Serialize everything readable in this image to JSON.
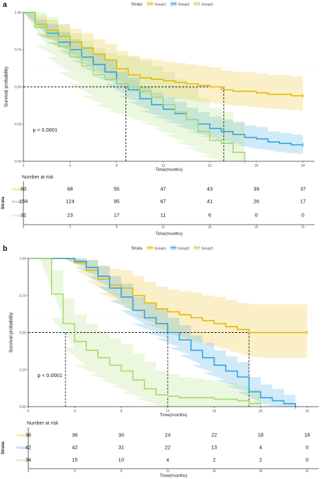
{
  "colors": {
    "group1": "#E7B800",
    "group2": "#2E9FDF",
    "group3": "#A6D96A"
  },
  "chart_data": [
    {
      "type": "line",
      "panel_label": "a",
      "legend": {
        "title": "Strata",
        "entries": [
          "Group1",
          "Group2",
          "Group3"
        ],
        "placement": "top"
      },
      "xlabel": "Time(months)",
      "ylabel": "Survival probability",
      "xlim": [
        0,
        25
      ],
      "ylim": [
        0,
        1
      ],
      "x_ticks": [
        0,
        4,
        8,
        12,
        16,
        20,
        24
      ],
      "y_ticks": [
        0,
        0.25,
        0.5,
        0.75,
        1
      ],
      "y_tick_labels": [
        "0.00",
        "0.25",
        "0.50",
        "0.75",
        "1.00"
      ],
      "pvalue": "p < 0.0001",
      "median_lines": [
        8.8,
        17.2
      ],
      "series": [
        {
          "name": "Group1",
          "x": [
            0,
            1,
            2,
            3,
            4,
            5,
            6,
            7,
            8,
            9,
            10,
            11,
            12,
            13,
            14,
            15,
            16,
            17,
            18,
            19,
            20,
            21,
            22,
            23,
            24
          ],
          "y": [
            1,
            0.92,
            0.88,
            0.84,
            0.8,
            0.76,
            0.72,
            0.68,
            0.62,
            0.58,
            0.56,
            0.55,
            0.54,
            0.53,
            0.52,
            0.51,
            0.5,
            0.48,
            0.47,
            0.47,
            0.46,
            0.45,
            0.45,
            0.44,
            0.44
          ],
          "lower": [
            1,
            0.86,
            0.8,
            0.75,
            0.7,
            0.66,
            0.62,
            0.57,
            0.52,
            0.47,
            0.45,
            0.44,
            0.43,
            0.42,
            0.41,
            0.4,
            0.39,
            0.38,
            0.37,
            0.37,
            0.36,
            0.35,
            0.35,
            0.34,
            0.34
          ],
          "upper": [
            1,
            0.98,
            0.95,
            0.92,
            0.89,
            0.86,
            0.82,
            0.79,
            0.74,
            0.71,
            0.69,
            0.68,
            0.67,
            0.66,
            0.65,
            0.64,
            0.63,
            0.61,
            0.6,
            0.6,
            0.59,
            0.58,
            0.58,
            0.57,
            0.57
          ]
        },
        {
          "name": "Group2",
          "x": [
            0,
            1,
            2,
            3,
            4,
            5,
            6,
            7,
            8,
            9,
            10,
            11,
            12,
            13,
            14,
            15,
            16,
            17,
            18,
            19,
            20,
            21,
            22,
            23,
            24
          ],
          "y": [
            1,
            0.9,
            0.86,
            0.8,
            0.75,
            0.7,
            0.65,
            0.6,
            0.52,
            0.48,
            0.42,
            0.38,
            0.35,
            0.32,
            0.28,
            0.25,
            0.22,
            0.2,
            0.18,
            0.16,
            0.15,
            0.13,
            0.12,
            0.11,
            0.11
          ],
          "lower": [
            1,
            0.85,
            0.8,
            0.74,
            0.68,
            0.63,
            0.57,
            0.52,
            0.44,
            0.4,
            0.34,
            0.3,
            0.27,
            0.24,
            0.2,
            0.17,
            0.15,
            0.13,
            0.11,
            0.09,
            0.08,
            0.07,
            0.06,
            0.05,
            0.05
          ],
          "upper": [
            1,
            0.95,
            0.92,
            0.87,
            0.82,
            0.77,
            0.72,
            0.68,
            0.6,
            0.56,
            0.5,
            0.46,
            0.43,
            0.4,
            0.36,
            0.33,
            0.3,
            0.28,
            0.26,
            0.24,
            0.23,
            0.2,
            0.19,
            0.18,
            0.18
          ]
        },
        {
          "name": "Group3",
          "x": [
            0,
            1,
            2,
            3,
            4,
            5,
            6,
            7,
            8,
            9,
            10,
            11,
            12,
            13,
            14,
            15,
            16,
            17,
            18,
            19
          ],
          "y": [
            1,
            0.9,
            0.84,
            0.77,
            0.7,
            0.64,
            0.58,
            0.55,
            0.52,
            0.5,
            0.47,
            0.43,
            0.38,
            0.33,
            0.28,
            0.2,
            0.14,
            0.12,
            0.06,
            0
          ],
          "lower": [
            1,
            0.78,
            0.7,
            0.6,
            0.52,
            0.44,
            0.38,
            0.34,
            0.31,
            0.29,
            0.26,
            0.22,
            0.18,
            0.13,
            0.09,
            0.04,
            0.01,
            0,
            0,
            0
          ],
          "upper": [
            1,
            1,
            0.97,
            0.92,
            0.86,
            0.81,
            0.76,
            0.73,
            0.71,
            0.7,
            0.67,
            0.64,
            0.6,
            0.55,
            0.5,
            0.42,
            0.36,
            0.33,
            0.27,
            0.2
          ]
        }
      ],
      "risk_table": {
        "title": "Number at risk",
        "row_title": "Strata",
        "xlabel": "Time(months)",
        "times": [
          0,
          4,
          8,
          12,
          16,
          20,
          24
        ],
        "rows": [
          {
            "name": "Group1",
            "values": [
              83,
              68,
              55,
              47,
              43,
              39,
              37
            ]
          },
          {
            "name": "Group2",
            "values": [
              156,
              124,
              95,
              67,
              41,
              26,
              17
            ]
          },
          {
            "name": "Group3",
            "values": [
              31,
              23,
              17,
              11,
              6,
              0,
              0
            ]
          }
        ]
      }
    },
    {
      "type": "line",
      "panel_label": "b",
      "legend": {
        "title": "Strata",
        "entries": [
          "Group1",
          "Group2",
          "Group3"
        ],
        "placement": "top"
      },
      "xlabel": "Time(months)",
      "ylabel": "Survival probability",
      "xlim": [
        0,
        25
      ],
      "ylim": [
        0,
        1
      ],
      "x_ticks": [
        0,
        4,
        8,
        12,
        16,
        20,
        24
      ],
      "y_ticks": [
        0,
        0.25,
        0.5,
        0.75,
        1
      ],
      "y_tick_labels": [
        "0.00",
        "0.25",
        "0.50",
        "0.75",
        "1.00"
      ],
      "pvalue": "p < 0.0001",
      "median_lines": [
        3.2,
        12.0,
        19.0
      ],
      "series": [
        {
          "name": "Group1",
          "x": [
            0,
            1,
            2,
            3,
            4,
            5,
            6,
            7,
            8,
            9,
            10,
            11,
            12,
            13,
            14,
            15,
            16,
            17,
            18,
            19,
            20,
            21,
            22,
            23,
            24
          ],
          "y": [
            1,
            1,
            1,
            1,
            0.97,
            0.92,
            0.86,
            0.82,
            0.8,
            0.75,
            0.7,
            0.66,
            0.64,
            0.62,
            0.6,
            0.58,
            0.56,
            0.54,
            0.52,
            0.5,
            0.5,
            0.5,
            0.5,
            0.5,
            0.5
          ],
          "lower": [
            1,
            1,
            1,
            1,
            0.92,
            0.85,
            0.77,
            0.71,
            0.68,
            0.62,
            0.56,
            0.51,
            0.49,
            0.46,
            0.44,
            0.42,
            0.4,
            0.38,
            0.35,
            0.33,
            0.33,
            0.33,
            0.33,
            0.33,
            0.33
          ],
          "upper": [
            1,
            1,
            1,
            1,
            1,
            0.99,
            0.95,
            0.93,
            0.92,
            0.88,
            0.84,
            0.81,
            0.79,
            0.78,
            0.77,
            0.75,
            0.74,
            0.72,
            0.7,
            0.69,
            0.69,
            0.69,
            0.69,
            0.69,
            0.69
          ]
        },
        {
          "name": "Group2",
          "x": [
            0,
            1,
            2,
            3,
            4,
            5,
            6,
            7,
            8,
            9,
            10,
            11,
            12,
            13,
            14,
            15,
            16,
            17,
            18,
            19,
            20,
            21,
            22,
            23
          ],
          "y": [
            1,
            1,
            1,
            1,
            0.98,
            0.94,
            0.88,
            0.8,
            0.74,
            0.65,
            0.6,
            0.56,
            0.5,
            0.45,
            0.38,
            0.33,
            0.28,
            0.24,
            0.2,
            0.1,
            0.06,
            0.04,
            0.02,
            0
          ],
          "lower": [
            1,
            1,
            1,
            1,
            0.94,
            0.88,
            0.81,
            0.72,
            0.65,
            0.56,
            0.5,
            0.46,
            0.4,
            0.35,
            0.28,
            0.23,
            0.18,
            0.14,
            0.1,
            0.03,
            0.01,
            0,
            0,
            0
          ],
          "upper": [
            1,
            1,
            1,
            1,
            1,
            0.99,
            0.95,
            0.88,
            0.83,
            0.74,
            0.7,
            0.66,
            0.6,
            0.55,
            0.48,
            0.43,
            0.38,
            0.34,
            0.3,
            0.2,
            0.15,
            0.12,
            0.08,
            0.05
          ]
        },
        {
          "name": "Group3",
          "x": [
            0,
            1,
            2,
            3,
            4,
            5,
            6,
            7,
            8,
            9,
            10,
            11,
            12,
            13,
            14,
            15,
            16,
            17,
            18,
            19,
            20
          ],
          "y": [
            1,
            1,
            0.76,
            0.56,
            0.44,
            0.38,
            0.33,
            0.28,
            0.24,
            0.18,
            0.12,
            0.08,
            0.07,
            0.06,
            0.06,
            0.06,
            0.05,
            0.05,
            0.04,
            0.02,
            0.02
          ],
          "lower": [
            1,
            1,
            0.6,
            0.4,
            0.28,
            0.22,
            0.18,
            0.14,
            0.1,
            0.06,
            0.02,
            0,
            0,
            0,
            0,
            0,
            0,
            0,
            0,
            0,
            0
          ],
          "upper": [
            1,
            1,
            0.92,
            0.73,
            0.62,
            0.56,
            0.51,
            0.46,
            0.42,
            0.36,
            0.3,
            0.24,
            0.22,
            0.2,
            0.19,
            0.18,
            0.17,
            0.16,
            0.14,
            0.12,
            0.12
          ]
        }
      ],
      "risk_table": {
        "title": "Number at risk",
        "row_title": "Strata",
        "xlabel": "Time(months)",
        "times": [
          0,
          4,
          8,
          12,
          16,
          20,
          24
        ],
        "rows": [
          {
            "name": "Group1",
            "values": [
              36,
              36,
              30,
              24,
              22,
              18,
              18
            ]
          },
          {
            "name": "Group2",
            "values": [
              42,
              42,
              31,
              22,
              13,
              4,
              0
            ]
          },
          {
            "name": "Group3",
            "values": [
              34,
              15,
              10,
              4,
              2,
              2,
              0
            ]
          }
        ]
      }
    }
  ]
}
